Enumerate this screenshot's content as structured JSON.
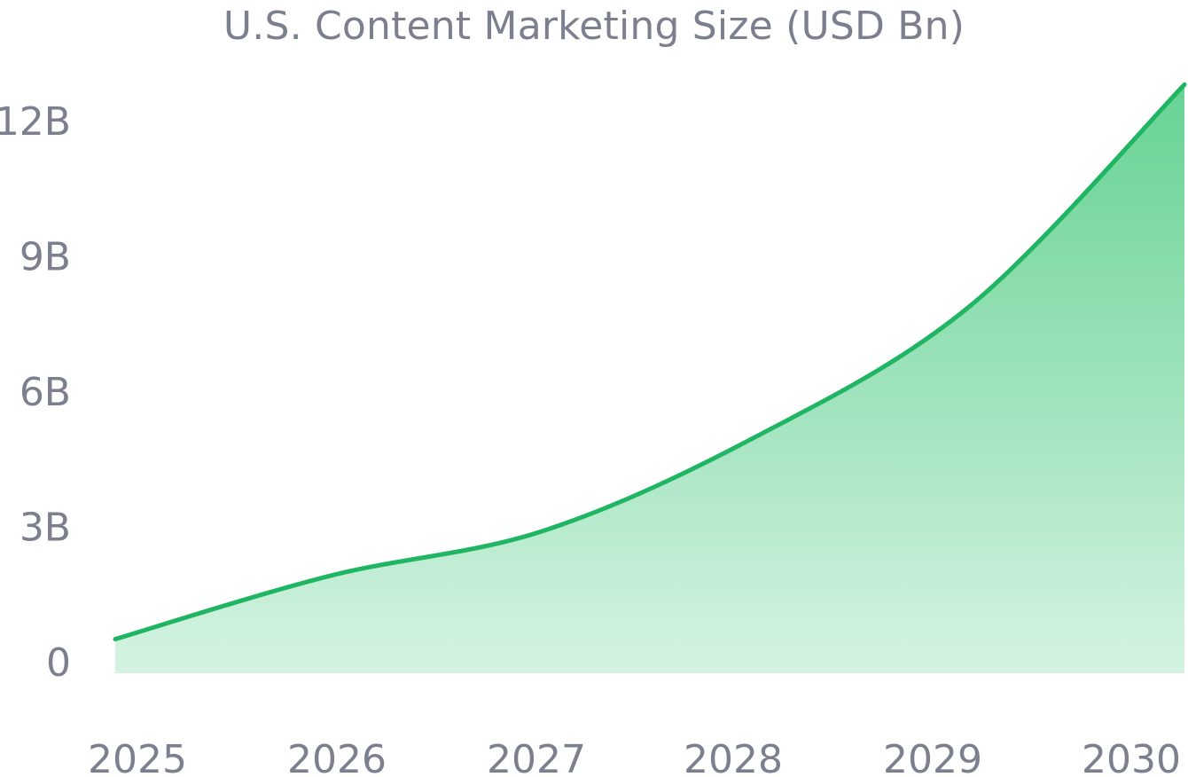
{
  "chart_data": {
    "type": "area",
    "title": "U.S. Content Marketing Size (USD Bn)",
    "xlabel": "",
    "ylabel": "",
    "x": [
      "2025",
      "2026",
      "2027",
      "2028",
      "2029",
      "2030"
    ],
    "x_tick_labels": [
      "2025",
      "2026",
      "2027",
      "2028",
      "2029",
      "2030"
    ],
    "y_tick_values": [
      0,
      3,
      6,
      9,
      12
    ],
    "y_tick_labels": [
      "0",
      "3B",
      "6B",
      "9B",
      "12B"
    ],
    "ylim": [
      0,
      12.9
    ],
    "grid": false,
    "legend": "none",
    "series": [
      {
        "values": [
          0.5,
          1.9,
          2.9,
          5.0,
          7.9,
          12.8
        ]
      }
    ],
    "colors": {
      "line": "#1fb562",
      "fill_top": "#5fd08f",
      "fill_bottom": "#d5f3e2",
      "text": "#7b7f8e"
    }
  }
}
